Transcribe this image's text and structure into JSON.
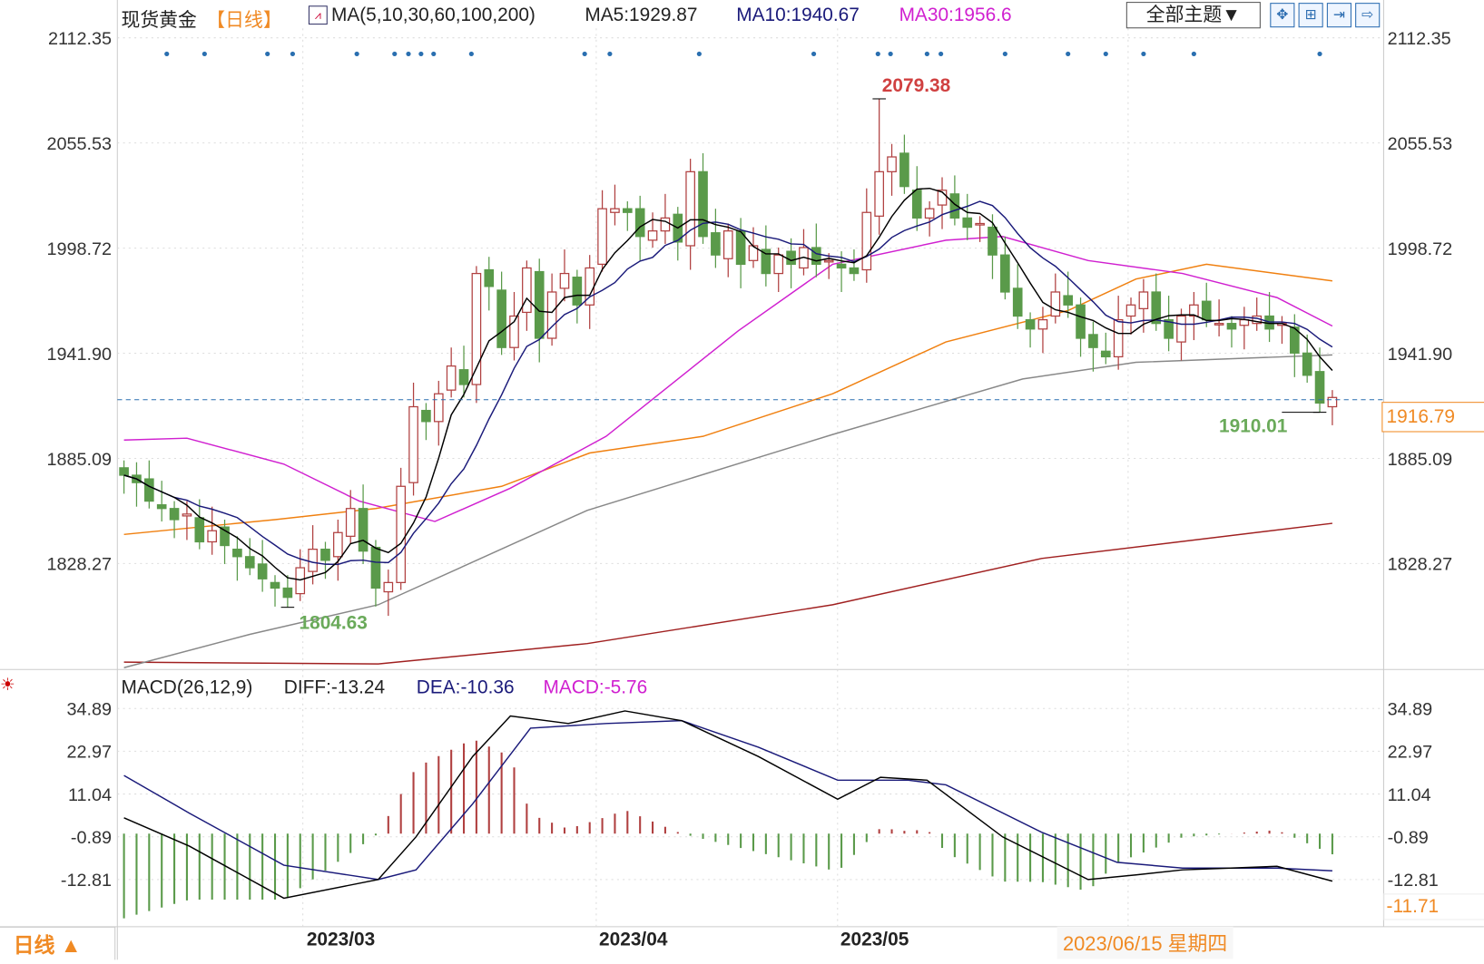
{
  "header": {
    "symbol": "现货黄金",
    "period": "【日线】",
    "ma_label": "MA(5,10,30,60,100,200)",
    "ma5": "MA5:1929.87",
    "ma10": "MA10:1940.67",
    "ma30": "MA30:1956.6",
    "theme_select": "全部主题▼"
  },
  "toolbar": {
    "icons": [
      "grid-icon",
      "layout-icon",
      "expand-icon",
      "forward-icon"
    ]
  },
  "price_axis": {
    "ticks": [
      "2112.35",
      "2055.53",
      "1998.72",
      "1941.90",
      "1885.09",
      "1828.27"
    ],
    "current": "1916.79"
  },
  "macd": {
    "label": "MACD(26,12,9)",
    "diff": "DIFF:-13.24",
    "dea": "DEA:-10.36",
    "macd": "MACD:-5.76",
    "ticks": [
      "34.89",
      "22.97",
      "11.04",
      "-0.89",
      "-12.81"
    ],
    "current": "-11.71"
  },
  "x_axis": {
    "labels": [
      "2023/03",
      "2023/04",
      "2023/05"
    ],
    "cursor_date": "2023/06/15 星期四"
  },
  "period_button": "日线 ▲",
  "annotations": {
    "high": "2079.38",
    "low": "1804.63",
    "recent_low": "1910.01"
  },
  "colors": {
    "up": "#b04040",
    "down": "#5a9a4a",
    "ma5": "#000000",
    "ma10": "#1a1a7a",
    "ma30": "#d020d0",
    "ma60": "#f08010",
    "ma100": "#888888",
    "ma200": "#a02020",
    "accent": "#f08a24"
  },
  "chart_data": {
    "type": "candlestick",
    "ylim": [
      1772,
      2112.35
    ],
    "close": [
      1876,
      1872,
      1862,
      1858,
      1852,
      1855,
      1840,
      1846,
      1838,
      1832,
      1826,
      1820,
      1815,
      1810,
      1826,
      1836,
      1830,
      1845,
      1858,
      1835,
      1815,
      1818,
      1870,
      1913,
      1905,
      1920,
      1935,
      1925,
      1985,
      1978,
      1945,
      1962,
      1988,
      1950,
      1975,
      1985,
      1968,
      1988,
      2020,
      2020,
      2018,
      2005,
      2008,
      2015,
      2002,
      2040,
      2005,
      1995,
      2008,
      1990,
      2000,
      1985,
      1995,
      1990,
      1999,
      1990,
      1992,
      1988,
      1985,
      2018,
      2040,
      2048,
      2032,
      2015,
      2020,
      2030,
      2015,
      2010,
      2012,
      1995,
      1975,
      1962,
      1955,
      1960,
      1975,
      1968,
      1950,
      1945,
      1940,
      1960,
      1968,
      1975,
      1958,
      1950,
      1962,
      1968,
      1960,
      1958,
      1955,
      1960,
      1962,
      1955,
      1958,
      1942,
      1930,
      1915,
      1918
    ],
    "high_point": {
      "index": 60,
      "value": 2079.38
    },
    "low_point": {
      "index": 13,
      "value": 1804.63
    },
    "recent_low_point": {
      "index": 95,
      "value": 1910.01
    },
    "ma30": [
      [
        0,
        1895
      ],
      [
        5,
        1896
      ],
      [
        12.7,
        1882
      ],
      [
        18.7,
        1862
      ],
      [
        24.7,
        1851
      ],
      [
        30.7,
        1869
      ],
      [
        38.3,
        1897
      ],
      [
        48.8,
        1954
      ],
      [
        56.3,
        1990
      ],
      [
        65.3,
        2003
      ],
      [
        69.8,
        2005
      ],
      [
        76.6,
        1992
      ],
      [
        84.1,
        1985
      ],
      [
        91.6,
        1972
      ],
      [
        96,
        1956.6
      ]
    ],
    "ma60": [
      [
        0,
        1844
      ],
      [
        12,
        1852
      ],
      [
        20,
        1858
      ],
      [
        30,
        1870
      ],
      [
        37,
        1888
      ],
      [
        46,
        1897
      ],
      [
        56.3,
        1920
      ],
      [
        65.3,
        1948
      ],
      [
        75,
        1965
      ],
      [
        80.4,
        1982
      ],
      [
        86,
        1990
      ],
      [
        96,
        1981
      ]
    ],
    "ma100": [
      [
        0,
        1772
      ],
      [
        10,
        1790
      ],
      [
        20.2,
        1806
      ],
      [
        36.8,
        1857
      ],
      [
        56.3,
        1898
      ],
      [
        71.4,
        1928
      ],
      [
        80.4,
        1937
      ],
      [
        96,
        1941
      ]
    ],
    "ma200": [
      [
        0,
        1775
      ],
      [
        20.2,
        1774
      ],
      [
        36.8,
        1785
      ],
      [
        56.3,
        1806
      ],
      [
        72.9,
        1831
      ],
      [
        96,
        1850
      ]
    ],
    "signal_dots": [
      3.4,
      6.4,
      11.4,
      13.4,
      18.5,
      21.5,
      22.6,
      23.6,
      24.6,
      27.6,
      36.6,
      38.6,
      45.7,
      54.8,
      59.9,
      60.9,
      63.8,
      64.9,
      70,
      75,
      78,
      81,
      85,
      95
    ],
    "macd_ylim": [
      -23,
      38
    ],
    "diff": [
      [
        0,
        4.4
      ],
      [
        5.2,
        -3.5
      ],
      [
        12.7,
        -18
      ],
      [
        20.2,
        -12.8
      ],
      [
        23.2,
        -0.9
      ],
      [
        27.7,
        21.5
      ],
      [
        30.7,
        32.8
      ],
      [
        35.3,
        30.7
      ],
      [
        39.8,
        34.2
      ],
      [
        44.3,
        31.5
      ],
      [
        50.4,
        21.5
      ],
      [
        56.7,
        9.6
      ],
      [
        60.1,
        15.7
      ],
      [
        63.8,
        14.9
      ],
      [
        69.8,
        -0.9
      ],
      [
        76.6,
        -12.8
      ],
      [
        80.4,
        -11.5
      ],
      [
        84.1,
        -10.1
      ],
      [
        87.9,
        -9.6
      ],
      [
        91.6,
        -9.1
      ],
      [
        96,
        -13.24
      ]
    ],
    "dea": [
      [
        0,
        16.2
      ],
      [
        5.2,
        5.7
      ],
      [
        12.7,
        -8.8
      ],
      [
        20.2,
        -12.8
      ],
      [
        23.2,
        -10.1
      ],
      [
        27.7,
        8.3
      ],
      [
        32.3,
        29.4
      ],
      [
        38.3,
        30.7
      ],
      [
        44.3,
        31.5
      ],
      [
        50.4,
        24.1
      ],
      [
        56.7,
        14.9
      ],
      [
        62.3,
        14.9
      ],
      [
        65.3,
        13.6
      ],
      [
        72.9,
        0.4
      ],
      [
        78.9,
        -8
      ],
      [
        84.1,
        -9.6
      ],
      [
        91.6,
        -9.6
      ],
      [
        96,
        -10.36
      ]
    ]
  }
}
